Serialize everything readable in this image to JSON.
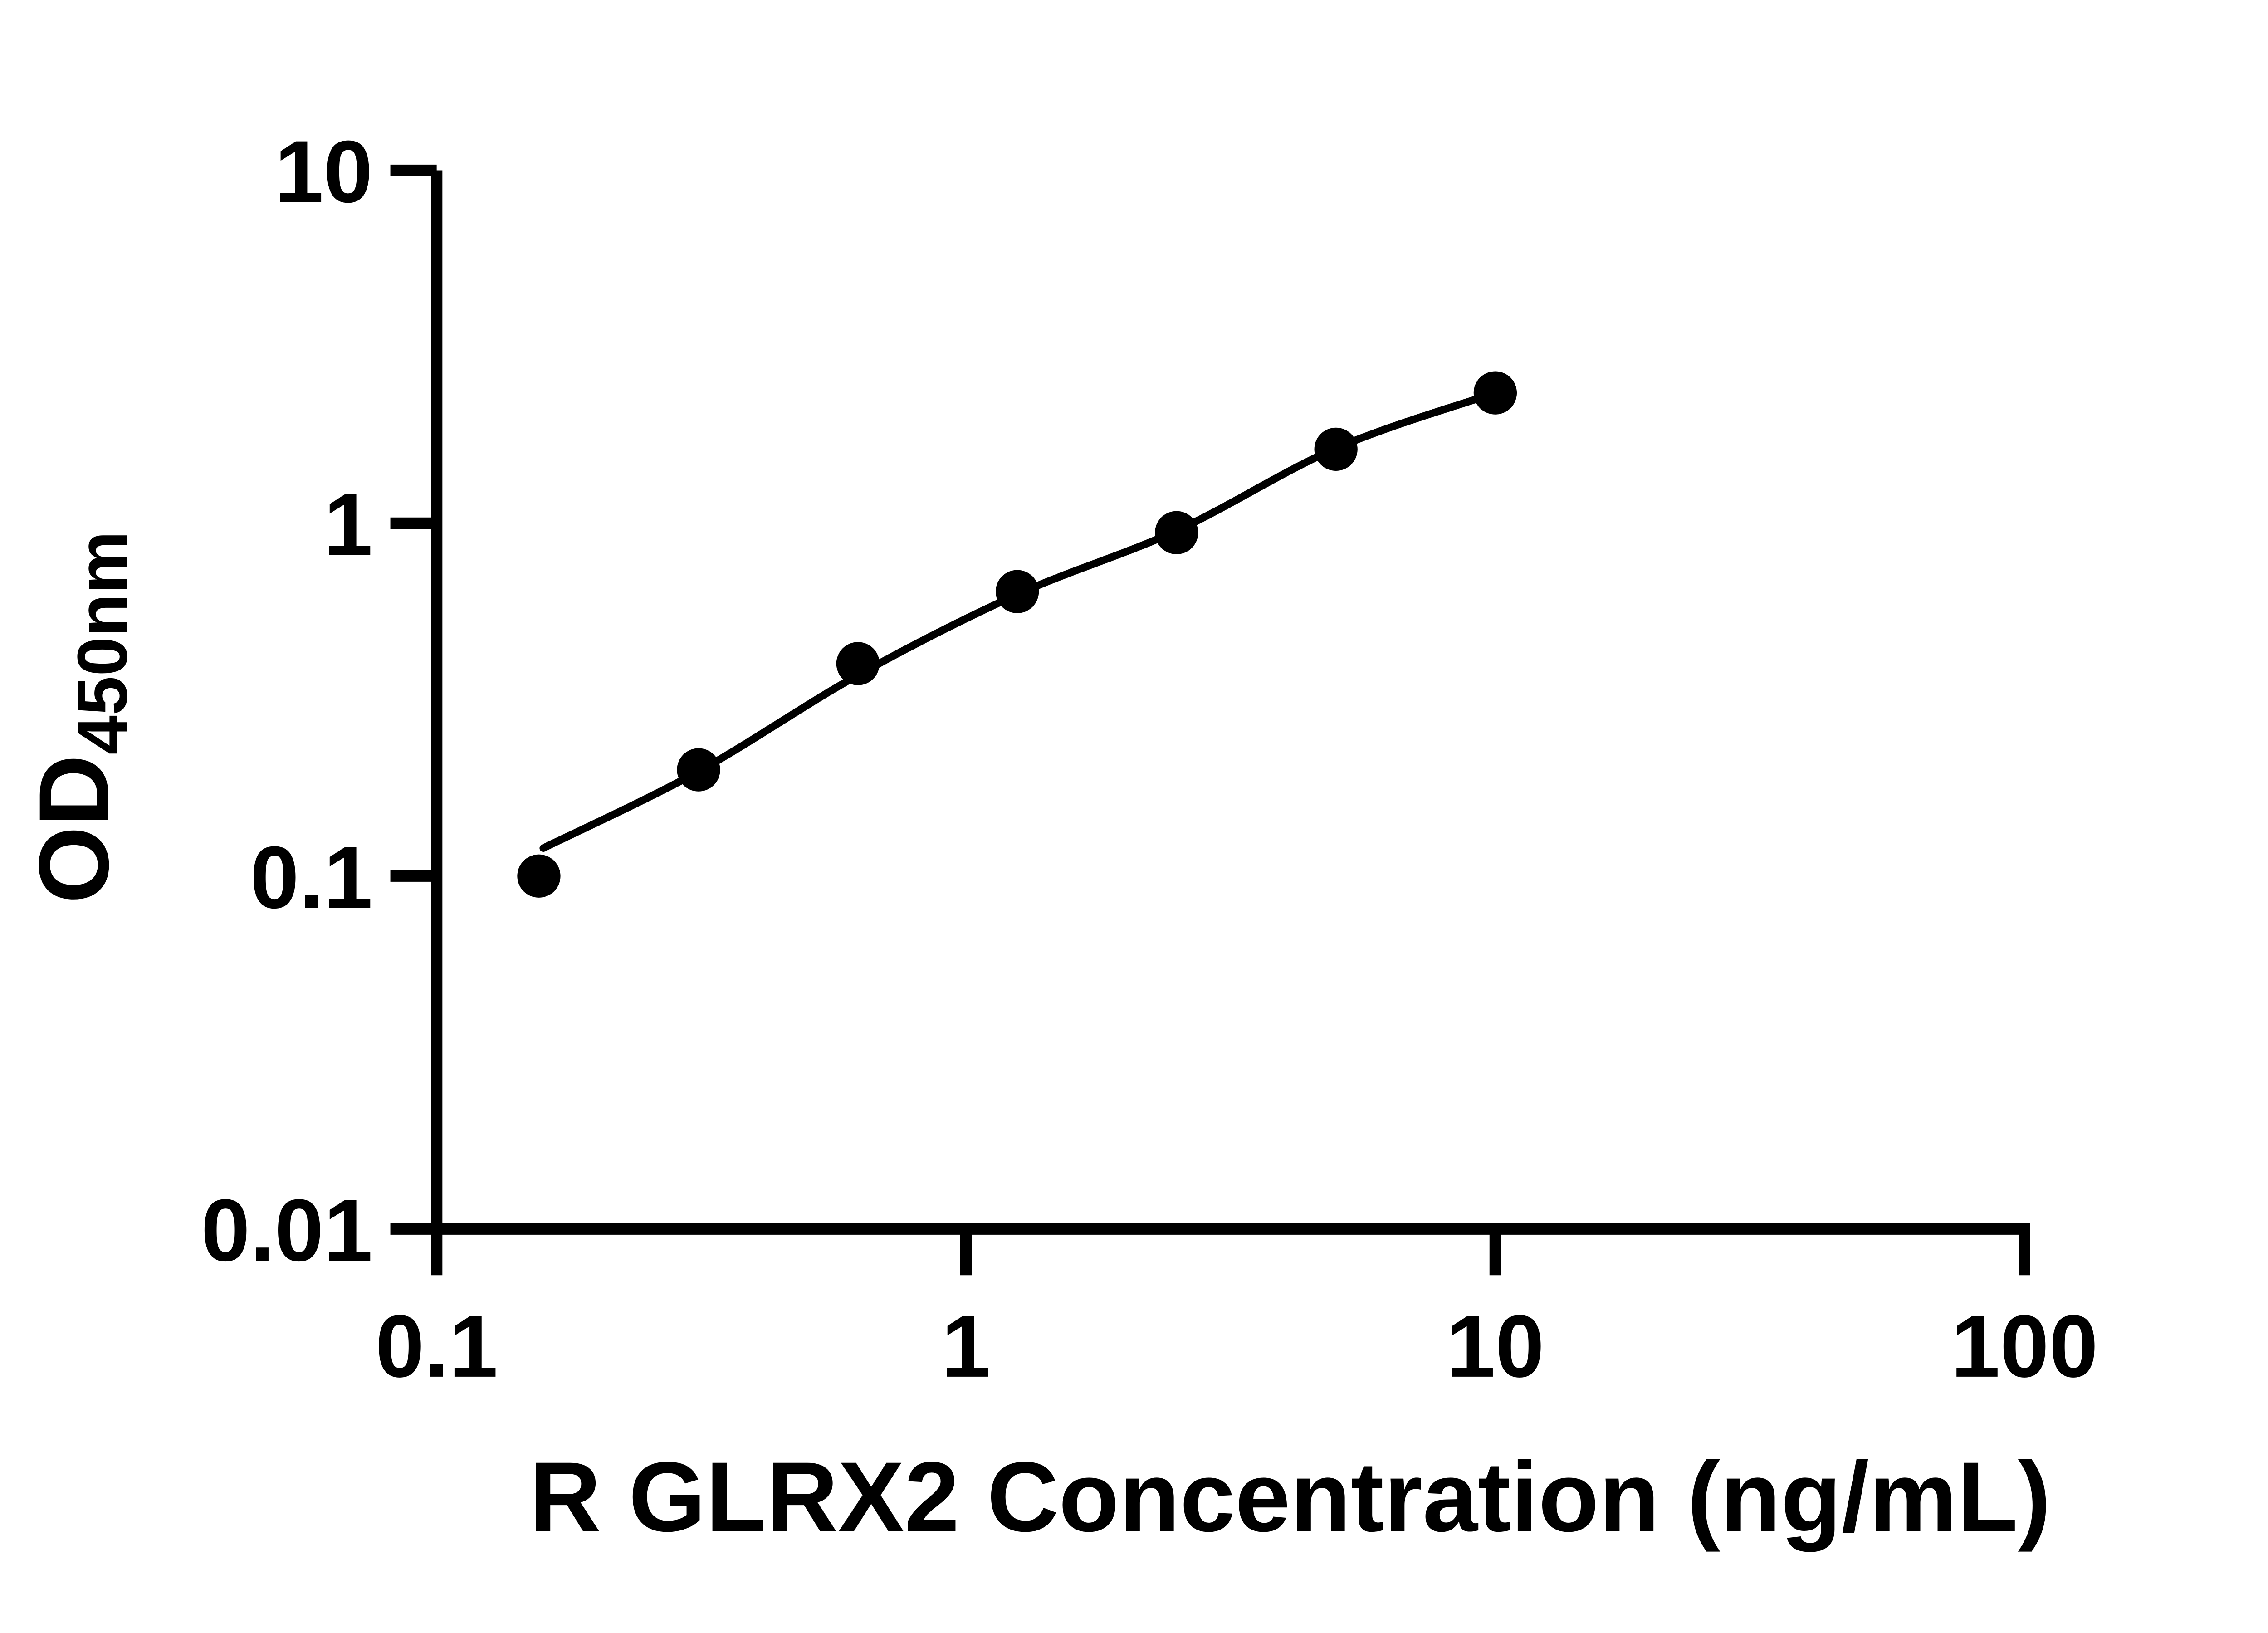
{
  "figure": {
    "background": "#ffffff",
    "foreground": "#000000"
  },
  "chart_data": {
    "type": "scatter",
    "title": "",
    "xlabel": "R GLRX2 Concentration (ng/mL)",
    "ylabel_main": "OD",
    "ylabel_sub": "450nm",
    "x_scale": "log",
    "y_scale": "log",
    "xlim": [
      0.1,
      100
    ],
    "ylim": [
      0.01,
      10
    ],
    "x_ticks": [
      {
        "value": 0.1,
        "label": "0.1"
      },
      {
        "value": 1,
        "label": "1"
      },
      {
        "value": 10,
        "label": "10"
      },
      {
        "value": 100,
        "label": "100"
      }
    ],
    "y_ticks": [
      {
        "value": 0.01,
        "label": "0.01"
      },
      {
        "value": 0.1,
        "label": "0.1"
      },
      {
        "value": 1,
        "label": "1"
      },
      {
        "value": 10,
        "label": "10"
      }
    ],
    "grid": false,
    "legend": "none",
    "points": [
      {
        "x": 0.156,
        "y": 0.1
      },
      {
        "x": 0.3125,
        "y": 0.2
      },
      {
        "x": 0.625,
        "y": 0.4
      },
      {
        "x": 1.25,
        "y": 0.64
      },
      {
        "x": 2.5,
        "y": 0.94
      },
      {
        "x": 5.0,
        "y": 1.62
      },
      {
        "x": 10.0,
        "y": 2.34
      }
    ],
    "fit_curve": [
      {
        "x": 0.159,
        "y": 0.12
      },
      {
        "x": 0.3125,
        "y": 0.198
      },
      {
        "x": 0.625,
        "y": 0.371
      },
      {
        "x": 1.25,
        "y": 0.628
      },
      {
        "x": 2.5,
        "y": 0.952
      },
      {
        "x": 5.0,
        "y": 1.63
      },
      {
        "x": 10.0,
        "y": 2.34
      }
    ],
    "marker_color": "#000000",
    "line_color": "#000000",
    "axis_color": "#000000"
  }
}
